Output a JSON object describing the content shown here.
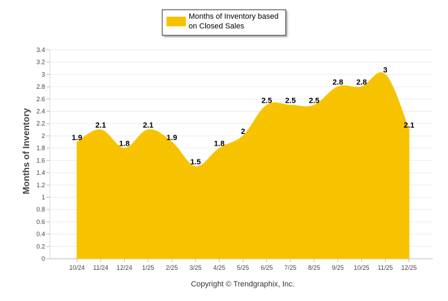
{
  "chart_data": {
    "type": "area",
    "categories": [
      "10/24",
      "11/24",
      "12/24",
      "1/25",
      "2/25",
      "3/25",
      "4/25",
      "5/25",
      "6/25",
      "7/25",
      "8/25",
      "9/25",
      "10/25",
      "11/25",
      "12/25"
    ],
    "series": [
      {
        "name": "Months of Inventory based on Closed Sales",
        "legend_lines": [
          "Months of Inventory based",
          "on Closed Sales"
        ],
        "values": [
          1.9,
          2.1,
          1.8,
          2.1,
          1.9,
          1.5,
          1.8,
          2.0,
          2.5,
          2.5,
          2.5,
          2.8,
          2.8,
          3.0,
          2.1
        ],
        "labels": [
          "1.9",
          "2.1",
          "1.8",
          "2.1",
          "1.9",
          "1.5",
          "1.8",
          "2",
          "2.5",
          "2.5",
          "2.5",
          "2.8",
          "2.8",
          "3",
          "2.1"
        ],
        "color": "#F7C300"
      }
    ],
    "ylabel": "Months of Inventory",
    "xlabel": "",
    "ylim": [
      0,
      3.4
    ],
    "yticks": [
      "0",
      "0.2",
      "0.4",
      "0.6",
      "0.8",
      "1",
      "1.2",
      "1.4",
      "1.6",
      "1.8",
      "2",
      "2.2",
      "2.4",
      "2.6",
      "2.8",
      "3",
      "3.2",
      "3.4"
    ],
    "grid": true,
    "legend_position": "top-center",
    "footer": "Copyright © Trendgraphix, Inc."
  }
}
